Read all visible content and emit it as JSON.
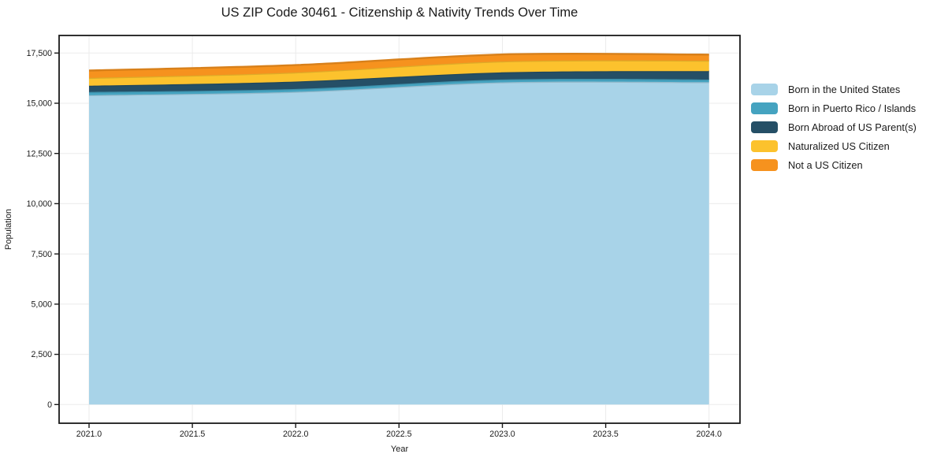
{
  "title": "US ZIP Code 30461 - Citizenship & Nativity Trends Over Time",
  "colors": {
    "background": "#ffffff",
    "frame": "#1a1a1a",
    "grid": "#ebebeb",
    "text": "#1a1a1a"
  },
  "chart_data": {
    "type": "area",
    "stacked": true,
    "smoothing": "spline",
    "title": "US ZIP Code 30461 - Citizenship & Nativity Trends Over Time",
    "xlabel": "Year",
    "ylabel": "Population",
    "x": [
      2021,
      2022,
      2023,
      2024
    ],
    "series": [
      {
        "name": "Born in the United States",
        "color": "#a8d3e8",
        "values": [
          15400,
          15570,
          16040,
          16050
        ]
      },
      {
        "name": "Born in Puerto Rico / Islands",
        "color": "#45a3c0",
        "values": [
          160,
          140,
          140,
          130
        ]
      },
      {
        "name": "Born Abroad of US Parent(s)",
        "color": "#254f66",
        "values": [
          310,
          370,
          360,
          420
        ]
      },
      {
        "name": "Naturalized US Citizen",
        "color": "#fcc22d",
        "values": [
          390,
          450,
          540,
          520
        ]
      },
      {
        "name": "Not a US Citizen",
        "color": "#f6921e",
        "values": [
          370,
          370,
          350,
          300
        ]
      }
    ],
    "x_ticks": [
      {
        "v": 2021.0,
        "label": "2021.0"
      },
      {
        "v": 2021.5,
        "label": "2021.5"
      },
      {
        "v": 2022.0,
        "label": "2022.0"
      },
      {
        "v": 2022.5,
        "label": "2022.5"
      },
      {
        "v": 2023.0,
        "label": "2023.0"
      },
      {
        "v": 2023.5,
        "label": "2023.5"
      },
      {
        "v": 2024.0,
        "label": "2024.0"
      }
    ],
    "y_ticks": [
      {
        "v": 0,
        "label": "0"
      },
      {
        "v": 2500,
        "label": "2,500"
      },
      {
        "v": 5000,
        "label": "5,000"
      },
      {
        "v": 7500,
        "label": "7,500"
      },
      {
        "v": 10000,
        "label": "10,000"
      },
      {
        "v": 12500,
        "label": "12,500"
      },
      {
        "v": 15000,
        "label": "15,000"
      },
      {
        "v": 17500,
        "label": "17,500"
      }
    ],
    "x_range": [
      2020.855,
      2024.15
    ],
    "y_range": [
      -930,
      18375
    ],
    "grid": true,
    "legend_position": "right"
  }
}
